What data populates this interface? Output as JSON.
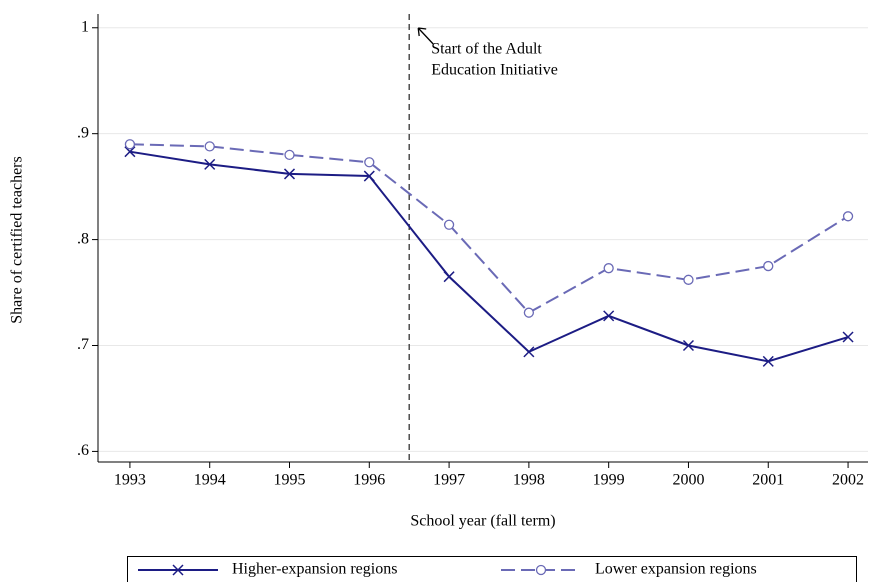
{
  "chart_data": {
    "type": "line",
    "x_label": "School year (fall term)",
    "y_label": "Share of certified teachers",
    "x": [
      1993,
      1994,
      1995,
      1996,
      1997,
      1998,
      1999,
      2000,
      2001,
      2002
    ],
    "series": [
      {
        "name": "Higher-expansion regions",
        "color": "#1c1c84",
        "dashed": false,
        "marker": "x",
        "values": [
          0.883,
          0.871,
          0.862,
          0.86,
          0.765,
          0.694,
          0.728,
          0.7,
          0.685,
          0.708
        ]
      },
      {
        "name": "Lower expansion regions",
        "color": "#6a6ab6",
        "dashed": true,
        "marker": "o",
        "values": [
          0.89,
          0.888,
          0.88,
          0.873,
          0.814,
          0.731,
          0.773,
          0.762,
          0.775,
          0.822
        ]
      }
    ],
    "xlim": [
      1992.6,
      2002.25
    ],
    "ylim": [
      0.59,
      1.013
    ],
    "xticks": [
      1993,
      1994,
      1995,
      1996,
      1997,
      1998,
      1999,
      2000,
      2001,
      2002
    ],
    "yticks": [
      {
        "value": 0.6,
        "label": ".6"
      },
      {
        "value": 0.7,
        "label": ".7"
      },
      {
        "value": 0.8,
        "label": ".8"
      },
      {
        "value": 0.9,
        "label": ".9"
      },
      1
    ],
    "grid": true,
    "vline": {
      "x": 1996.5,
      "label": [
        "Start of the Adult",
        "Education Initiative"
      ]
    },
    "legend": "bottom"
  }
}
